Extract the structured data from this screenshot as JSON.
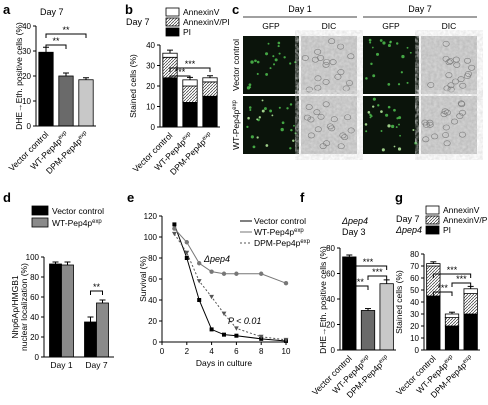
{
  "panel_labels": {
    "a": "a",
    "b": "b",
    "c": "c",
    "d": "d",
    "e": "e",
    "f": "f",
    "g": "g"
  },
  "colors": {
    "black": "#000000",
    "gray_dark": "#6a6a6a",
    "gray_mid": "#9a9a9a",
    "gray_light": "#c8c8c8",
    "white": "#ffffff"
  },
  "chart_data": [
    {
      "id": "a",
      "type": "bar",
      "annotation": "Day 7",
      "ylabel": "DHE→Eth. positive cells (%)",
      "ylim": [
        0,
        40
      ],
      "yticks": [
        0,
        10,
        20,
        30,
        40
      ],
      "categories": [
        "Vector control",
        "WT-Pep4p^exp",
        "DPM-Pep4p^exp"
      ],
      "values": [
        29.5,
        20,
        18.5
      ],
      "errors": [
        2.0,
        1.2,
        0.8
      ],
      "colors": [
        "#000000",
        "#6a6a6a",
        "#c8c8c8"
      ],
      "significance": [
        {
          "from": 0,
          "to": 1,
          "label": "**"
        },
        {
          "from": 0,
          "to": 2,
          "label": "**"
        }
      ]
    },
    {
      "id": "b",
      "type": "bar",
      "stacked": true,
      "annotation": "Day 7",
      "ylabel": "Stained cells (%)",
      "ylim": [
        0,
        40
      ],
      "yticks": [
        0,
        10,
        20,
        30,
        40
      ],
      "categories": [
        "Vector control",
        "WT-Pep4p^exp",
        "DPM-Pep4p^exp"
      ],
      "legend": [
        "AnnexinV",
        "AnnexinV/PI",
        "PI"
      ],
      "series": [
        {
          "name": "PI",
          "values": [
            24,
            12,
            15
          ]
        },
        {
          "name": "AnnexinV/PI",
          "values": [
            10,
            8,
            7
          ]
        },
        {
          "name": "AnnexinV",
          "values": [
            2,
            3,
            2
          ]
        }
      ],
      "totals": [
        36,
        23,
        24
      ],
      "errors": [
        1.5,
        1.2,
        1.0
      ],
      "significance": [
        {
          "from": 0,
          "to": 1,
          "label": "***"
        },
        {
          "from": 0,
          "to": 2,
          "label": "***"
        }
      ]
    },
    {
      "id": "d",
      "type": "bar",
      "ylabel": "Nhp6Ap/HMGB1 nuclear localization (%)",
      "ylim": [
        0,
        100
      ],
      "yticks": [
        0,
        20,
        40,
        60,
        80,
        100
      ],
      "categories": [
        "Day 1",
        "Day 7"
      ],
      "legend": [
        "Vector control",
        "WT-Pep4p^exp"
      ],
      "series": [
        {
          "name": "Vector control",
          "values": [
            93,
            35
          ]
        },
        {
          "name": "WT-Pep4p^exp",
          "values": [
            92,
            54
          ]
        }
      ],
      "errors": [
        [
          2,
          5
        ],
        [
          3,
          3
        ]
      ],
      "significance": [
        {
          "category": 1,
          "label": "**"
        }
      ]
    },
    {
      "id": "e",
      "type": "line",
      "annotation": "Δpep4",
      "pvalue": "P < 0.01",
      "xlabel": "Days in culture",
      "ylabel": "Survival (%)",
      "xlim": [
        0,
        10
      ],
      "xticks": [
        0,
        2,
        4,
        6,
        8,
        10
      ],
      "ylim": [
        0,
        120
      ],
      "yticks": [
        0,
        20,
        40,
        60,
        80,
        100,
        120
      ],
      "series": [
        {
          "name": "Vector control",
          "marker": "square",
          "x": [
            1,
            2,
            3,
            4,
            5,
            6,
            8,
            10
          ],
          "y": [
            112,
            80,
            40,
            12,
            7,
            6,
            3,
            1
          ]
        },
        {
          "name": "WT-Pep4p^exp",
          "marker": "circle",
          "x": [
            1,
            2,
            3,
            4,
            5,
            6,
            8,
            10
          ],
          "y": [
            108,
            95,
            75,
            67,
            65,
            65,
            65,
            56
          ]
        },
        {
          "name": "DPM-Pep4p^exp",
          "marker": "triangle",
          "x": [
            1,
            2,
            3,
            4,
            5,
            6,
            8,
            10
          ],
          "y": [
            103,
            85,
            58,
            43,
            27,
            13,
            5,
            2
          ]
        }
      ]
    },
    {
      "id": "f",
      "type": "bar",
      "annotation": [
        "Δpep4",
        "Day 3"
      ],
      "ylabel": "DHE→Eth. positive cells (%)",
      "ylim": [
        0,
        80
      ],
      "yticks": [
        0,
        20,
        40,
        60,
        80
      ],
      "categories": [
        "Vector control",
        "WT-Pep4p^exp",
        "DPM-Pep4p^exp"
      ],
      "values": [
        73,
        31,
        52
      ],
      "errors": [
        1.5,
        1.5,
        3
      ],
      "colors": [
        "#000000",
        "#6a6a6a",
        "#c8c8c8"
      ],
      "significance": [
        {
          "from": 0,
          "to": 1,
          "label": "***"
        },
        {
          "from": 1,
          "to": 2,
          "label": "***"
        },
        {
          "from": 0,
          "to": 2,
          "label": "***"
        }
      ]
    },
    {
      "id": "g",
      "type": "bar",
      "stacked": true,
      "annotation": [
        "Day 7",
        "Δpep4"
      ],
      "ylabel": "Stained cells (%)",
      "ylim": [
        0,
        80
      ],
      "yticks": [
        0,
        10,
        20,
        30,
        40,
        50,
        60,
        70,
        80
      ],
      "categories": [
        "Vector control",
        "WT-Pep4p^exp",
        "DPM-Pep4p^exp"
      ],
      "legend": [
        "AnnexinV",
        "AnnexinV/PI",
        "PI"
      ],
      "series": [
        {
          "name": "PI",
          "values": [
            45,
            20,
            30
          ]
        },
        {
          "name": "AnnexinV/PI",
          "values": [
            25,
            7,
            17
          ]
        },
        {
          "name": "AnnexinV",
          "values": [
            2,
            3,
            4
          ]
        }
      ],
      "totals": [
        72,
        30,
        51
      ],
      "errors": [
        1.5,
        1.5,
        2
      ],
      "significance": [
        {
          "from": 0,
          "to": 1,
          "label": "***"
        },
        {
          "from": 1,
          "to": 2,
          "label": "***"
        },
        {
          "from": 0,
          "to": 2,
          "label": "***"
        }
      ]
    }
  ],
  "panel_c": {
    "group_labels": [
      "Day 1",
      "Day 7"
    ],
    "column_labels": [
      "GFP",
      "DIC",
      "GFP",
      "DIC"
    ],
    "row_labels": [
      "Vector control",
      "WT-Pep4p^exp"
    ]
  }
}
